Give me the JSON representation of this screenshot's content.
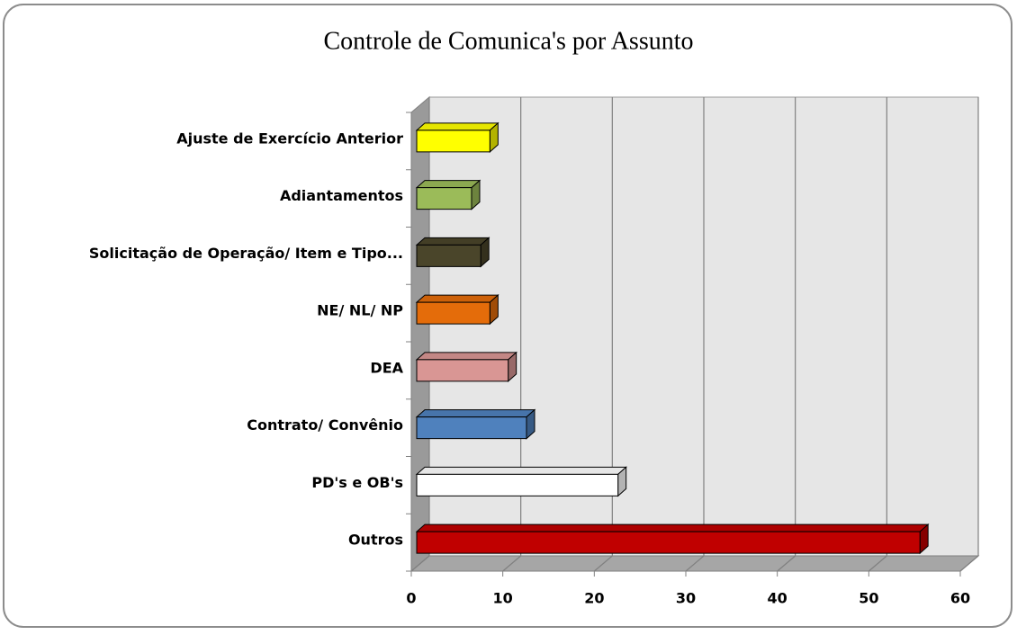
{
  "chart_data": {
    "type": "bar3d_horizontal",
    "title": "Controle de Comunica's por Assunto",
    "categories": [
      "Ajuste de Exercício Anterior",
      "Adiantamentos",
      "Solicitação de Operação/ Item e Tipo...",
      "NE/ NL/ NP",
      "DEA",
      "Contrato/ Convênio",
      "PD's e OB's",
      "Outros"
    ],
    "values": [
      8,
      6,
      7,
      8,
      10,
      12,
      22,
      55
    ],
    "colors": [
      "#ffff00",
      "#9bbb59",
      "#4a452a",
      "#e46c0a",
      "#d99694",
      "#4f81bd",
      "#ffffff",
      "#c00000"
    ],
    "xlim": [
      0,
      60
    ],
    "xticks": [
      0,
      10,
      20,
      30,
      40,
      50,
      60
    ],
    "grid": true
  }
}
